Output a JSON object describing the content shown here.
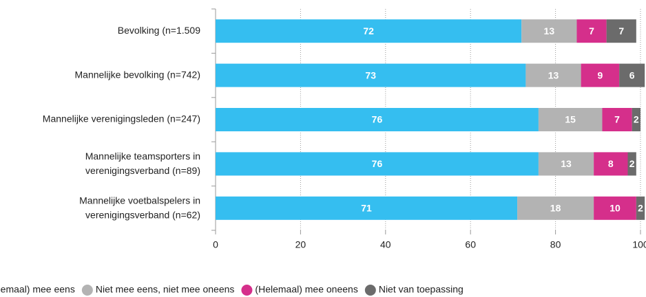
{
  "chart_data": {
    "type": "bar",
    "orientation": "horizontal",
    "stacked": true,
    "categories": [
      "Bevolking (n=1.509",
      "Mannelijke bevolking (n=742)",
      "Mannelijke verenigingsleden (n=247)",
      "Mannelijke teamsporters in\nverenigingsverband (n=89)",
      "Mannelijke voetbalspelers in\nverenigingsverband (n=62)"
    ],
    "series": [
      {
        "name": "(Helemaal) mee eens",
        "color": "#35bef0",
        "values": [
          72,
          73,
          76,
          76,
          71
        ]
      },
      {
        "name": "Niet mee eens, niet mee oneens",
        "color": "#b3b3b3",
        "values": [
          13,
          13,
          15,
          13,
          18
        ]
      },
      {
        "name": "(Helemaal) mee oneens",
        "color": "#d52f8b",
        "values": [
          7,
          9,
          7,
          8,
          10
        ]
      },
      {
        "name": "Niet van toepassing",
        "color": "#6b6b6b",
        "values": [
          7,
          6,
          2,
          2,
          2
        ]
      }
    ],
    "xlim": [
      0,
      100
    ],
    "xticks": [
      0,
      20,
      40,
      60,
      80,
      100
    ],
    "grid": true,
    "legend": "bottom"
  }
}
